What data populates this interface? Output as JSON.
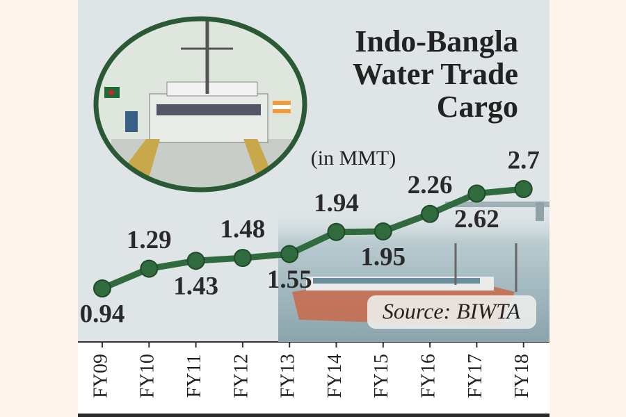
{
  "chart_data": {
    "type": "line",
    "title": "Indo-Bangla Water Trade Cargo",
    "subtitle": "(in MMT)",
    "annotation": "Source: BIWTA",
    "categories": [
      "FY09",
      "FY10",
      "FY11",
      "FY12",
      "FY13",
      "FY14",
      "FY15",
      "FY16",
      "FY17",
      "FY18"
    ],
    "values": [
      0.94,
      1.29,
      1.43,
      1.48,
      1.55,
      1.94,
      1.95,
      2.26,
      2.62,
      2.7
    ],
    "color": "#2f6b3d"
  }
}
